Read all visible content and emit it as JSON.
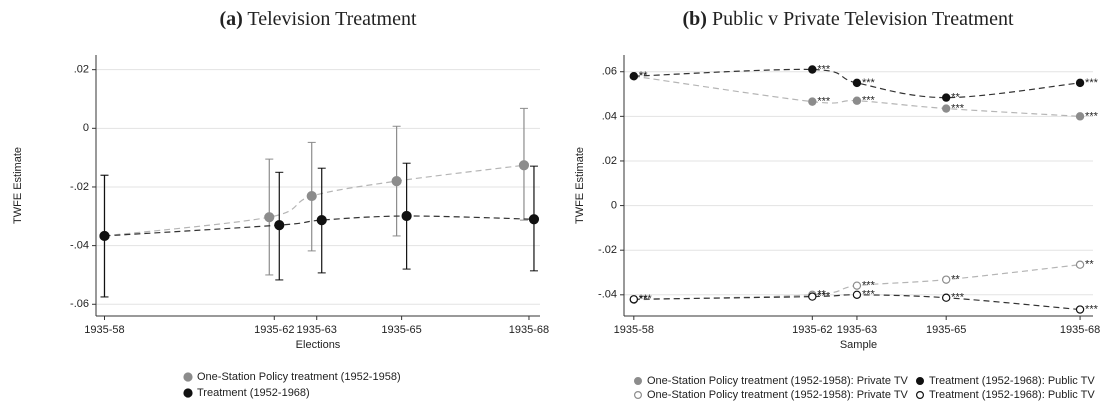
{
  "chart_data": [
    {
      "type": "line",
      "panel": "(a)",
      "title": "Television Treatment",
      "x_label": "Elections",
      "y_label": "TWFE Estimate",
      "x": [
        1958,
        1962,
        1963,
        1965,
        1968
      ],
      "xlim": [
        1957.8,
        1968.26
      ],
      "xticks": [
        {
          "value": 1958,
          "label": "1935-58"
        },
        {
          "value": 1962,
          "label": "1935-62"
        },
        {
          "value": 1963,
          "label": "1935-63"
        },
        {
          "value": 1965,
          "label": "1935-65"
        },
        {
          "value": 1968,
          "label": "1935-68"
        }
      ],
      "ylim": [
        -0.064,
        0.025
      ],
      "yticks": [
        {
          "value": -0.06,
          "label": "-.06"
        },
        {
          "value": -0.04,
          "label": "-.04"
        },
        {
          "value": -0.02,
          "label": "-.02"
        },
        0,
        {
          "value": 0.02,
          "label": ".02"
        }
      ],
      "grid": true,
      "legend": "bottom",
      "series": [
        {
          "name": "One-Station Policy treatment (1952-1958)",
          "color": "#8c8c8c",
          "marker": "filled",
          "values": [
            -0.0367,
            -0.0303,
            -0.0231,
            -0.018,
            -0.0126
          ],
          "lower": [
            -0.0575,
            -0.05,
            -0.0418,
            -0.0367,
            -0.0313
          ],
          "upper": [
            -0.016,
            -0.0105,
            -0.0048,
            0.0007,
            0.0068
          ]
        },
        {
          "name": "Treatment (1952-1968)",
          "color": "#111111",
          "marker": "filled",
          "values": [
            -0.0367,
            -0.033,
            -0.0313,
            -0.0299,
            -0.031
          ],
          "lower": [
            -0.0575,
            -0.0517,
            -0.0493,
            -0.048,
            -0.0486
          ],
          "upper": [
            -0.016,
            -0.015,
            -0.0136,
            -0.0119,
            -0.0129
          ]
        }
      ]
    },
    {
      "type": "line",
      "panel": "(b)",
      "title": "Public v Private Television Treatment",
      "x_label": "Sample",
      "y_label": "TWFE Estimate",
      "x": [
        1958,
        1962,
        1963,
        1965,
        1968
      ],
      "xlim": [
        1957.78,
        1968.29
      ],
      "xticks": [
        {
          "value": 1958,
          "label": "1935-58"
        },
        {
          "value": 1962,
          "label": "1935-62"
        },
        {
          "value": 1963,
          "label": "1935-63"
        },
        {
          "value": 1965,
          "label": "1935-65"
        },
        {
          "value": 1968,
          "label": "1935-68"
        }
      ],
      "ylim": [
        -0.0495,
        0.0675
      ],
      "yticks": [
        {
          "value": -0.04,
          "label": "-.04"
        },
        {
          "value": -0.02,
          "label": "-.02"
        },
        0,
        {
          "value": 0.02,
          "label": ".02"
        },
        {
          "value": 0.04,
          "label": ".04"
        },
        {
          "value": 0.06,
          "label": ".06"
        }
      ],
      "grid": true,
      "legend": "bottom",
      "series": [
        {
          "name": "One-Station Policy treatment (1952-1958): Private TV",
          "color": "#8c8c8c",
          "marker": "filled",
          "values": [
            0.058,
            0.0466,
            0.047,
            0.0435,
            0.04
          ],
          "stars": [
            "**",
            "***",
            "***",
            "***",
            "***"
          ]
        },
        {
          "name": "Treatment (1952-1968): Public TV",
          "color": "#111111",
          "marker": "filled",
          "values": [
            0.058,
            0.061,
            0.055,
            0.0484,
            0.055
          ],
          "stars": [
            "**",
            "***",
            "***",
            "**",
            "***"
          ]
        },
        {
          "name": "One-Station Policy treatment (1952-1958): Private TV",
          "color": "#8c8c8c",
          "marker": "hollow",
          "values": [
            -0.0422,
            -0.04,
            -0.0359,
            -0.0332,
            -0.0265
          ],
          "stars": [
            "**",
            "**",
            "***",
            "**",
            "**"
          ]
        },
        {
          "name": "Treatment (1952-1968): Public TV",
          "color": "#111111",
          "marker": "hollow",
          "values": [
            -0.042,
            -0.0408,
            -0.04,
            -0.0413,
            -0.0466
          ],
          "stars": [
            "***",
            "***",
            "***",
            "***",
            "***"
          ]
        }
      ]
    }
  ]
}
